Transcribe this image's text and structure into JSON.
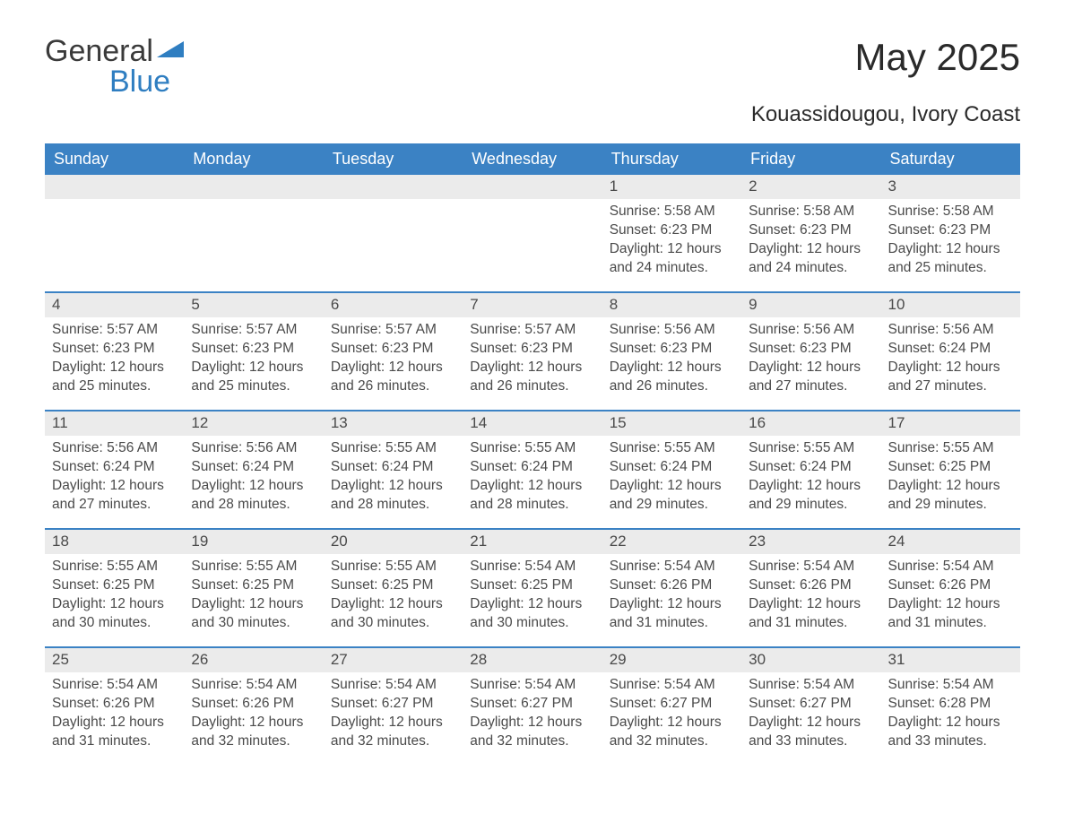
{
  "logo": {
    "word1": "General",
    "word2": "Blue"
  },
  "title": "May 2025",
  "location": "Kouassidougou, Ivory Coast",
  "colors": {
    "header_bg": "#3b82c4",
    "header_text": "#ffffff",
    "daynum_bg": "#ebebeb",
    "text": "#4a4a4a",
    "rule": "#3b82c4",
    "logo_blue": "#2f7ec1",
    "background": "#ffffff"
  },
  "weekdays": [
    "Sunday",
    "Monday",
    "Tuesday",
    "Wednesday",
    "Thursday",
    "Friday",
    "Saturday"
  ],
  "labels": {
    "sunrise": "Sunrise: ",
    "sunset": "Sunset: ",
    "daylight": "Daylight: "
  },
  "weeks": [
    [
      null,
      null,
      null,
      null,
      {
        "n": "1",
        "sr": "5:58 AM",
        "ss": "6:23 PM",
        "dl": "12 hours and 24 minutes."
      },
      {
        "n": "2",
        "sr": "5:58 AM",
        "ss": "6:23 PM",
        "dl": "12 hours and 24 minutes."
      },
      {
        "n": "3",
        "sr": "5:58 AM",
        "ss": "6:23 PM",
        "dl": "12 hours and 25 minutes."
      }
    ],
    [
      {
        "n": "4",
        "sr": "5:57 AM",
        "ss": "6:23 PM",
        "dl": "12 hours and 25 minutes."
      },
      {
        "n": "5",
        "sr": "5:57 AM",
        "ss": "6:23 PM",
        "dl": "12 hours and 25 minutes."
      },
      {
        "n": "6",
        "sr": "5:57 AM",
        "ss": "6:23 PM",
        "dl": "12 hours and 26 minutes."
      },
      {
        "n": "7",
        "sr": "5:57 AM",
        "ss": "6:23 PM",
        "dl": "12 hours and 26 minutes."
      },
      {
        "n": "8",
        "sr": "5:56 AM",
        "ss": "6:23 PM",
        "dl": "12 hours and 26 minutes."
      },
      {
        "n": "9",
        "sr": "5:56 AM",
        "ss": "6:23 PM",
        "dl": "12 hours and 27 minutes."
      },
      {
        "n": "10",
        "sr": "5:56 AM",
        "ss": "6:24 PM",
        "dl": "12 hours and 27 minutes."
      }
    ],
    [
      {
        "n": "11",
        "sr": "5:56 AM",
        "ss": "6:24 PM",
        "dl": "12 hours and 27 minutes."
      },
      {
        "n": "12",
        "sr": "5:56 AM",
        "ss": "6:24 PM",
        "dl": "12 hours and 28 minutes."
      },
      {
        "n": "13",
        "sr": "5:55 AM",
        "ss": "6:24 PM",
        "dl": "12 hours and 28 minutes."
      },
      {
        "n": "14",
        "sr": "5:55 AM",
        "ss": "6:24 PM",
        "dl": "12 hours and 28 minutes."
      },
      {
        "n": "15",
        "sr": "5:55 AM",
        "ss": "6:24 PM",
        "dl": "12 hours and 29 minutes."
      },
      {
        "n": "16",
        "sr": "5:55 AM",
        "ss": "6:24 PM",
        "dl": "12 hours and 29 minutes."
      },
      {
        "n": "17",
        "sr": "5:55 AM",
        "ss": "6:25 PM",
        "dl": "12 hours and 29 minutes."
      }
    ],
    [
      {
        "n": "18",
        "sr": "5:55 AM",
        "ss": "6:25 PM",
        "dl": "12 hours and 30 minutes."
      },
      {
        "n": "19",
        "sr": "5:55 AM",
        "ss": "6:25 PM",
        "dl": "12 hours and 30 minutes."
      },
      {
        "n": "20",
        "sr": "5:55 AM",
        "ss": "6:25 PM",
        "dl": "12 hours and 30 minutes."
      },
      {
        "n": "21",
        "sr": "5:54 AM",
        "ss": "6:25 PM",
        "dl": "12 hours and 30 minutes."
      },
      {
        "n": "22",
        "sr": "5:54 AM",
        "ss": "6:26 PM",
        "dl": "12 hours and 31 minutes."
      },
      {
        "n": "23",
        "sr": "5:54 AM",
        "ss": "6:26 PM",
        "dl": "12 hours and 31 minutes."
      },
      {
        "n": "24",
        "sr": "5:54 AM",
        "ss": "6:26 PM",
        "dl": "12 hours and 31 minutes."
      }
    ],
    [
      {
        "n": "25",
        "sr": "5:54 AM",
        "ss": "6:26 PM",
        "dl": "12 hours and 31 minutes."
      },
      {
        "n": "26",
        "sr": "5:54 AM",
        "ss": "6:26 PM",
        "dl": "12 hours and 32 minutes."
      },
      {
        "n": "27",
        "sr": "5:54 AM",
        "ss": "6:27 PM",
        "dl": "12 hours and 32 minutes."
      },
      {
        "n": "28",
        "sr": "5:54 AM",
        "ss": "6:27 PM",
        "dl": "12 hours and 32 minutes."
      },
      {
        "n": "29",
        "sr": "5:54 AM",
        "ss": "6:27 PM",
        "dl": "12 hours and 32 minutes."
      },
      {
        "n": "30",
        "sr": "5:54 AM",
        "ss": "6:27 PM",
        "dl": "12 hours and 33 minutes."
      },
      {
        "n": "31",
        "sr": "5:54 AM",
        "ss": "6:28 PM",
        "dl": "12 hours and 33 minutes."
      }
    ]
  ]
}
